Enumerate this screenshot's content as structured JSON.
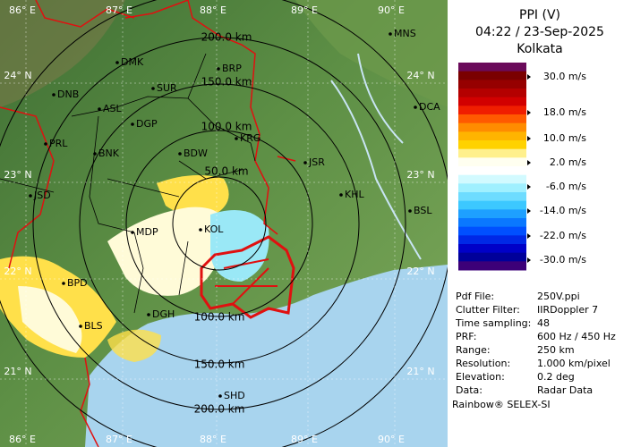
{
  "header": {
    "title": "PPI (V)",
    "time": "04:22 / 23-Sep-2025",
    "station": "Kolkata"
  },
  "legend": {
    "colors": [
      "#6a0a5a",
      "#7a0000",
      "#960000",
      "#b40000",
      "#d20000",
      "#f01e00",
      "#ff5a00",
      "#ff8c00",
      "#ffb400",
      "#ffd200",
      "#fff08c",
      "#fffff0",
      "#ffffff",
      "#d2faff",
      "#a0f0ff",
      "#6edcff",
      "#3cc8ff",
      "#1ea0ff",
      "#0a78ff",
      "#0050ff",
      "#0028e6",
      "#0000c8",
      "#00009a",
      "#3c0078"
    ],
    "labels": [
      "30.0 m/s",
      "18.0 m/s",
      "10.0 m/s",
      "2.0 m/s",
      "-6.0 m/s",
      "-14.0 m/s",
      "-22.0 m/s",
      "-30.0 m/s"
    ]
  },
  "info": [
    [
      "Pdf File:",
      "250V.ppi"
    ],
    [
      "Clutter Filter:",
      "IIRDoppler 7"
    ],
    [
      "Time sampling:",
      "48"
    ],
    [
      "PRF:",
      "600 Hz / 450 Hz"
    ],
    [
      "Range:",
      "250 km"
    ],
    [
      "Resolution:",
      "1.000 km/pixel"
    ],
    [
      "Elevation:",
      "0.2 deg"
    ],
    [
      "Data:",
      "Radar Data"
    ]
  ],
  "footer": "Rainbow® SELEX-SI",
  "map": {
    "longitude_labels": [
      "86° E",
      "87° E",
      "88° E",
      "89° E",
      "90° E"
    ],
    "latitude_labels": [
      "24° N",
      "23° N",
      "22° N",
      "21° N"
    ],
    "range_labels": [
      "50.0 km",
      "100.0 km",
      "150.0 km",
      "200.0 km"
    ],
    "cities": [
      "MNS",
      "DMK",
      "BRP",
      "DNB",
      "SUR",
      "ASL",
      "DCA",
      "DGP",
      "KRG",
      "PRL",
      "BNK",
      "BDW",
      "JSR",
      "KHL",
      "JSD",
      "BSL",
      "MDP",
      "KOL",
      "BPD",
      "DGH",
      "BLS",
      "SHD"
    ]
  }
}
